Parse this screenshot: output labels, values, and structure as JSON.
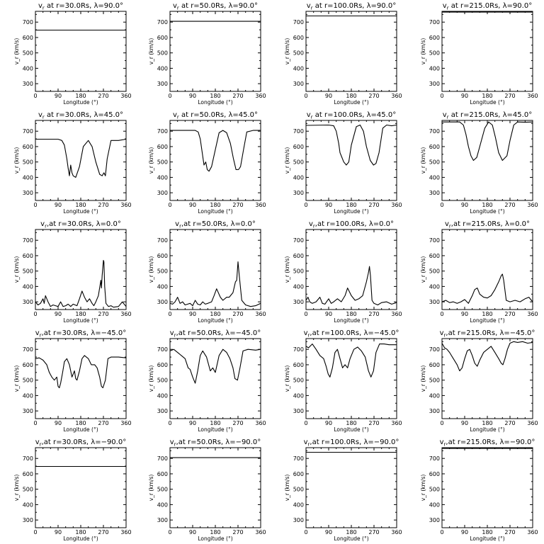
{
  "chart_data": [
    {
      "type": "line",
      "title_parts": [
        "v",
        "r",
        " at r=30.0Rs, λ=90.0°"
      ],
      "xlabel": "Longitude (°)",
      "ylabel": "v_r (km/s)",
      "xlim": [
        0,
        360
      ],
      "ylim": [
        250,
        770
      ],
      "xticks": [
        "0",
        "90",
        "180",
        "270",
        "360"
      ],
      "yticks": [
        "300",
        "400",
        "500",
        "600",
        "700"
      ],
      "x": [
        0,
        360
      ],
      "y": [
        648,
        648
      ]
    },
    {
      "type": "line",
      "title_parts": [
        "v",
        "r",
        " at r=50.0Rs, λ=90.0°"
      ],
      "xlabel": "Longitude (°)",
      "ylabel": "v_r (km/s)",
      "xlim": [
        0,
        360
      ],
      "ylim": [
        250,
        770
      ],
      "xticks": [
        "0",
        "90",
        "180",
        "270",
        "360"
      ],
      "yticks": [
        "300",
        "400",
        "500",
        "600",
        "700"
      ],
      "x": [
        0,
        360
      ],
      "y": [
        705,
        705
      ]
    },
    {
      "type": "line",
      "title_parts": [
        "v",
        "r",
        " at r=100.0Rs, λ=90.0°"
      ],
      "xlabel": "Longitude (°)",
      "ylabel": "v_r (km/s)",
      "xlim": [
        0,
        360
      ],
      "ylim": [
        250,
        770
      ],
      "xticks": [
        "0",
        "90",
        "180",
        "270",
        "360"
      ],
      "yticks": [
        "300",
        "400",
        "500",
        "600",
        "700"
      ],
      "x": [
        0,
        360
      ],
      "y": [
        740,
        740
      ]
    },
    {
      "type": "line",
      "title_parts": [
        "v",
        "r",
        " at r=215.0Rs, λ=90.0°"
      ],
      "xlabel": "Longitude (°)",
      "ylabel": "v_r (km/s)",
      "xlim": [
        0,
        360
      ],
      "ylim": [
        250,
        770
      ],
      "xticks": [
        "0",
        "90",
        "180",
        "270",
        "360"
      ],
      "yticks": [
        "300",
        "400",
        "500",
        "600",
        "700"
      ],
      "x": [
        0,
        360
      ],
      "y": [
        765,
        765
      ]
    },
    {
      "type": "line",
      "title_parts": [
        "v",
        "r",
        " at r=30.0Rs, λ=45.0°"
      ],
      "xlabel": "Longitude (°)",
      "ylabel": "v_r (km/s)",
      "xlim": [
        0,
        360
      ],
      "ylim": [
        250,
        770
      ],
      "xticks": [
        "0",
        "90",
        "180",
        "270",
        "360"
      ],
      "yticks": [
        "300",
        "400",
        "500",
        "600",
        "700"
      ],
      "x": [
        0,
        90,
        105,
        115,
        125,
        130,
        135,
        140,
        145,
        150,
        160,
        175,
        190,
        210,
        225,
        240,
        255,
        265,
        272,
        278,
        285,
        300,
        330,
        360
      ],
      "y": [
        648,
        648,
        640,
        610,
        520,
        460,
        410,
        480,
        430,
        410,
        400,
        470,
        600,
        640,
        600,
        500,
        420,
        410,
        430,
        410,
        520,
        640,
        640,
        648
      ]
    },
    {
      "type": "line",
      "title_parts": [
        "v",
        "r",
        " at r=50.0Rs, λ=45.0°"
      ],
      "xlabel": "Longitude (°)",
      "ylabel": "v_r (km/s)",
      "xlim": [
        0,
        360
      ],
      "ylim": [
        250,
        770
      ],
      "xticks": [
        "0",
        "90",
        "180",
        "270",
        "360"
      ],
      "yticks": [
        "300",
        "400",
        "500",
        "600",
        "700"
      ],
      "x": [
        0,
        100,
        112,
        120,
        128,
        135,
        142,
        148,
        155,
        165,
        180,
        195,
        210,
        225,
        240,
        252,
        262,
        272,
        280,
        292,
        305,
        330,
        360
      ],
      "y": [
        705,
        705,
        695,
        650,
        560,
        480,
        500,
        450,
        440,
        470,
        580,
        690,
        705,
        690,
        620,
        520,
        450,
        450,
        470,
        580,
        695,
        705,
        705
      ]
    },
    {
      "type": "line",
      "title_parts": [
        "v",
        "r",
        " at r=100.0Rs, λ=45.0°"
      ],
      "xlabel": "Longitude (°)",
      "ylabel": "v_r (km/s)",
      "xlim": [
        0,
        360
      ],
      "ylim": [
        250,
        770
      ],
      "xticks": [
        "0",
        "90",
        "180",
        "270",
        "360"
      ],
      "yticks": [
        "300",
        "400",
        "500",
        "600",
        "700"
      ],
      "x": [
        0,
        90,
        110,
        120,
        130,
        135,
        140,
        150,
        160,
        170,
        180,
        200,
        215,
        228,
        240,
        255,
        268,
        278,
        290,
        305,
        320,
        340,
        360
      ],
      "y": [
        738,
        740,
        735,
        700,
        620,
        560,
        540,
        500,
        480,
        500,
        610,
        730,
        740,
        700,
        600,
        510,
        480,
        490,
        560,
        720,
        740,
        735,
        740
      ]
    },
    {
      "type": "line",
      "title_parts": [
        "v",
        "r",
        " at r=215.0Rs, λ=45.0°"
      ],
      "xlabel": "Longitude (°)",
      "ylabel": "v_r (km/s)",
      "xlim": [
        0,
        360
      ],
      "ylim": [
        250,
        770
      ],
      "xticks": [
        "0",
        "90",
        "180",
        "270",
        "360"
      ],
      "yticks": [
        "300",
        "400",
        "500",
        "600",
        "700"
      ],
      "x": [
        0,
        40,
        70,
        85,
        95,
        105,
        115,
        125,
        138,
        150,
        170,
        185,
        200,
        212,
        225,
        240,
        258,
        270,
        285,
        300,
        330,
        360
      ],
      "y": [
        760,
        760,
        760,
        740,
        680,
        600,
        540,
        510,
        530,
        600,
        720,
        760,
        740,
        660,
        560,
        510,
        540,
        640,
        740,
        760,
        758,
        760
      ]
    },
    {
      "type": "line",
      "title_parts": [
        "v",
        "r",
        ",at r=30.0Rs, λ=0.0°"
      ],
      "xlabel": "Longitude (°)",
      "ylabel": "v_r (km/s)",
      "xlim": [
        0,
        360
      ],
      "ylim": [
        250,
        770
      ],
      "xticks": [
        "0",
        "90",
        "180",
        "270",
        "360"
      ],
      "yticks": [
        "300",
        "400",
        "500",
        "600",
        "700"
      ],
      "x": [
        0,
        10,
        20,
        30,
        35,
        40,
        50,
        60,
        70,
        80,
        90,
        100,
        110,
        120,
        130,
        140,
        150,
        165,
        175,
        185,
        195,
        205,
        215,
        225,
        232,
        240,
        250,
        260,
        262,
        265,
        270,
        272,
        275,
        280,
        290,
        300,
        310,
        330,
        345,
        360
      ],
      "y": [
        300,
        280,
        290,
        320,
        290,
        340,
        300,
        270,
        280,
        275,
        270,
        300,
        270,
        275,
        285,
        270,
        285,
        275,
        320,
        370,
        330,
        300,
        320,
        290,
        275,
        300,
        340,
        440,
        390,
        470,
        570,
        560,
        400,
        290,
        270,
        275,
        265,
        270,
        300,
        270
      ]
    },
    {
      "type": "line",
      "title_parts": [
        "v",
        "r",
        ",at r=50.0Rs, λ=0.0°"
      ],
      "xlabel": "Longitude (°)",
      "ylabel": "v_r (km/s)",
      "xlim": [
        0,
        360
      ],
      "ylim": [
        250,
        770
      ],
      "xticks": [
        "0",
        "90",
        "180",
        "270",
        "360"
      ],
      "yticks": [
        "300",
        "400",
        "500",
        "600",
        "700"
      ],
      "x": [
        0,
        10,
        20,
        30,
        40,
        50,
        60,
        70,
        80,
        90,
        100,
        110,
        120,
        130,
        140,
        150,
        165,
        175,
        185,
        200,
        210,
        225,
        235,
        250,
        260,
        265,
        270,
        275,
        285,
        300,
        320,
        340,
        360
      ],
      "y": [
        290,
        285,
        300,
        330,
        290,
        300,
        280,
        285,
        290,
        275,
        310,
        285,
        280,
        300,
        285,
        290,
        300,
        340,
        385,
        330,
        310,
        330,
        330,
        360,
        430,
        440,
        560,
        470,
        310,
        280,
        270,
        275,
        290
      ]
    },
    {
      "type": "line",
      "title_parts": [
        "v",
        "r",
        ",at r=100.0Rs, λ=0.0°"
      ],
      "xlabel": "Longitude (°)",
      "ylabel": "v_r (km/s)",
      "xlim": [
        0,
        360
      ],
      "ylim": [
        250,
        770
      ],
      "xticks": [
        "0",
        "90",
        "180",
        "270",
        "360"
      ],
      "yticks": [
        "300",
        "400",
        "500",
        "600",
        "700"
      ],
      "x": [
        0,
        8,
        15,
        25,
        40,
        55,
        65,
        75,
        90,
        100,
        110,
        125,
        140,
        155,
        165,
        180,
        195,
        210,
        225,
        240,
        248,
        252,
        256,
        262,
        270,
        285,
        300,
        320,
        340,
        360
      ],
      "y": [
        310,
        330,
        300,
        290,
        300,
        330,
        290,
        285,
        320,
        290,
        300,
        320,
        300,
        340,
        390,
        340,
        310,
        320,
        340,
        430,
        490,
        530,
        470,
        310,
        290,
        280,
        295,
        300,
        285,
        295
      ]
    },
    {
      "type": "line",
      "title_parts": [
        "v",
        "r",
        ",at r=215.0Rs, λ=0.0°"
      ],
      "xlabel": "Longitude (°)",
      "ylabel": "v_r (km/s)",
      "xlim": [
        0,
        360
      ],
      "ylim": [
        250,
        770
      ],
      "xticks": [
        "0",
        "90",
        "180",
        "270",
        "360"
      ],
      "yticks": [
        "300",
        "400",
        "500",
        "600",
        "700"
      ],
      "x": [
        0,
        15,
        30,
        45,
        60,
        75,
        90,
        105,
        120,
        130,
        140,
        150,
        165,
        180,
        195,
        210,
        225,
        235,
        240,
        245,
        255,
        270,
        290,
        310,
        330,
        345,
        360
      ],
      "y": [
        300,
        310,
        295,
        300,
        290,
        300,
        315,
        290,
        340,
        380,
        390,
        350,
        330,
        325,
        340,
        380,
        430,
        470,
        480,
        440,
        310,
        300,
        310,
        300,
        320,
        330,
        300
      ]
    },
    {
      "type": "line",
      "title_parts": [
        "v",
        "r",
        ",at r=30.0Rs, λ=−45.0°"
      ],
      "xlabel": "Longitude (°)",
      "ylabel": "v_r (km/s)",
      "xlim": [
        0,
        360
      ],
      "ylim": [
        250,
        770
      ],
      "xticks": [
        "0",
        "90",
        "180",
        "270",
        "360"
      ],
      "yticks": [
        "300",
        "400",
        "500",
        "600",
        "700"
      ],
      "x": [
        0,
        15,
        30,
        45,
        55,
        65,
        75,
        85,
        90,
        95,
        100,
        108,
        115,
        125,
        135,
        145,
        155,
        160,
        165,
        175,
        185,
        195,
        210,
        222,
        235,
        245,
        255,
        262,
        268,
        278,
        288,
        300,
        330,
        360
      ],
      "y": [
        640,
        645,
        630,
        600,
        550,
        520,
        500,
        520,
        460,
        450,
        480,
        550,
        620,
        640,
        600,
        520,
        560,
        510,
        500,
        560,
        640,
        660,
        640,
        600,
        600,
        580,
        520,
        460,
        450,
        500,
        640,
        650,
        650,
        645
      ]
    },
    {
      "type": "line",
      "title_parts": [
        "v",
        "r",
        ",at r=50.0Rs, λ=−45.0°"
      ],
      "xlabel": "Longitude (°)",
      "ylabel": "v_r (km/s)",
      "xlim": [
        0,
        360
      ],
      "ylim": [
        250,
        770
      ],
      "xticks": [
        "0",
        "90",
        "180",
        "270",
        "360"
      ],
      "yticks": [
        "300",
        "400",
        "500",
        "600",
        "700"
      ],
      "x": [
        0,
        15,
        30,
        45,
        60,
        72,
        80,
        90,
        100,
        110,
        120,
        130,
        145,
        160,
        170,
        180,
        195,
        210,
        225,
        238,
        250,
        258,
        268,
        278,
        290,
        310,
        340,
        360
      ],
      "y": [
        690,
        700,
        680,
        660,
        640,
        580,
        570,
        520,
        480,
        560,
        660,
        690,
        650,
        560,
        580,
        550,
        660,
        700,
        680,
        640,
        580,
        510,
        500,
        580,
        690,
        700,
        695,
        700
      ]
    },
    {
      "type": "line",
      "title_parts": [
        "v",
        "r",
        ",at r=100.0Rs, λ=−45.0°"
      ],
      "xlabel": "Longitude (°)",
      "ylabel": "v_r (km/s)",
      "xlim": [
        0,
        360
      ],
      "ylim": [
        250,
        770
      ],
      "xticks": [
        "0",
        "90",
        "180",
        "270",
        "360"
      ],
      "yticks": [
        "300",
        "400",
        "500",
        "600",
        "700"
      ],
      "x": [
        0,
        10,
        25,
        40,
        55,
        70,
        80,
        88,
        95,
        105,
        115,
        125,
        135,
        145,
        155,
        165,
        175,
        190,
        205,
        220,
        235,
        248,
        258,
        268,
        278,
        292,
        310,
        330,
        360
      ],
      "y": [
        720,
        710,
        735,
        700,
        660,
        640,
        590,
        540,
        520,
        580,
        680,
        700,
        640,
        580,
        600,
        580,
        640,
        700,
        715,
        690,
        650,
        560,
        520,
        560,
        680,
        735,
        735,
        730,
        730
      ]
    },
    {
      "type": "line",
      "title_parts": [
        "v",
        "r",
        ",at r=215.0Rs, λ=−45.0°"
      ],
      "xlabel": "Longitude (°)",
      "ylabel": "v_r (km/s)",
      "xlim": [
        0,
        360
      ],
      "ylim": [
        250,
        770
      ],
      "xticks": [
        "0",
        "90",
        "180",
        "270",
        "360"
      ],
      "yticks": [
        "300",
        "400",
        "500",
        "600",
        "700"
      ],
      "x": [
        0,
        10,
        20,
        30,
        45,
        60,
        70,
        80,
        90,
        100,
        110,
        120,
        130,
        140,
        150,
        165,
        180,
        195,
        210,
        225,
        235,
        242,
        250,
        260,
        270,
        285,
        300,
        320,
        340,
        360
      ],
      "y": [
        740,
        710,
        700,
        680,
        640,
        600,
        560,
        580,
        640,
        690,
        700,
        660,
        610,
        590,
        630,
        680,
        700,
        720,
        680,
        640,
        610,
        600,
        640,
        700,
        740,
        750,
        745,
        750,
        740,
        745
      ]
    },
    {
      "type": "line",
      "title_parts": [
        "v",
        "r",
        ",at r=30.0Rs, λ=−90.0°"
      ],
      "xlabel": "Longitude (°)",
      "ylabel": "v_r (km/s)",
      "xlim": [
        0,
        360
      ],
      "ylim": [
        250,
        770
      ],
      "xticks": [
        "0",
        "90",
        "180",
        "270",
        "360"
      ],
      "yticks": [
        "300",
        "400",
        "500",
        "600",
        "700"
      ],
      "x": [
        0,
        360
      ],
      "y": [
        648,
        648
      ]
    },
    {
      "type": "line",
      "title_parts": [
        "v",
        "r",
        ",at r=50.0Rs, λ=−90.0°"
      ],
      "xlabel": "Longitude (°)",
      "ylabel": "v_r (km/s)",
      "xlim": [
        0,
        360
      ],
      "ylim": [
        250,
        770
      ],
      "xticks": [
        "0",
        "90",
        "180",
        "270",
        "360"
      ],
      "yticks": [
        "300",
        "400",
        "500",
        "600",
        "700"
      ],
      "x": [
        0,
        360
      ],
      "y": [
        705,
        705
      ]
    },
    {
      "type": "line",
      "title_parts": [
        "v",
        "r",
        ",at r=100.0Rs, λ=−90.0°"
      ],
      "xlabel": "Longitude (°)",
      "ylabel": "v_r (km/s)",
      "xlim": [
        0,
        360
      ],
      "ylim": [
        250,
        770
      ],
      "xticks": [
        "0",
        "90",
        "180",
        "270",
        "360"
      ],
      "yticks": [
        "300",
        "400",
        "500",
        "600",
        "700"
      ],
      "x": [
        0,
        360
      ],
      "y": [
        740,
        740
      ]
    },
    {
      "type": "line",
      "title_parts": [
        "v",
        "r",
        ",at r=215.0Rs, λ=−90.0°"
      ],
      "xlabel": "Longitude (°)",
      "ylabel": "v_r (km/s)",
      "xlim": [
        0,
        360
      ],
      "ylim": [
        250,
        770
      ],
      "xticks": [
        "0",
        "90",
        "180",
        "270",
        "360"
      ],
      "yticks": [
        "300",
        "400",
        "500",
        "600",
        "700"
      ],
      "x": [
        0,
        360
      ],
      "y": [
        765,
        765
      ]
    }
  ]
}
